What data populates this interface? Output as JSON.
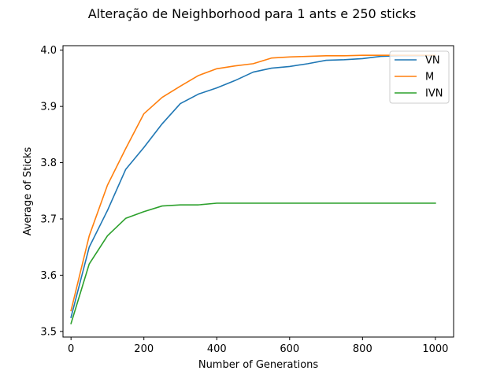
{
  "chart_data": {
    "type": "line",
    "title": "Alteração de Neighborhood para 1 ants e 250 sticks",
    "xlabel": "Number of Generations",
    "ylabel": "Average of Sticks",
    "xlim": [
      -22,
      1050
    ],
    "ylim": [
      3.49,
      4.008
    ],
    "xticks": [
      0,
      200,
      400,
      600,
      800,
      1000
    ],
    "yticks": [
      3.5,
      3.6,
      3.7,
      3.8,
      3.9,
      4.0
    ],
    "xtick_labels": [
      "0",
      "200",
      "400",
      "600",
      "800",
      "1000"
    ],
    "ytick_labels": [
      "3.5",
      "3.6",
      "3.7",
      "3.8",
      "3.9",
      "4.0"
    ],
    "grid": false,
    "legend_position": "top-right",
    "x": [
      0,
      50,
      100,
      150,
      200,
      250,
      300,
      350,
      400,
      450,
      500,
      550,
      600,
      650,
      700,
      750,
      800,
      850,
      900,
      950,
      1000
    ],
    "series": [
      {
        "name": "VN",
        "color": "#1f77b4",
        "values": [
          3.525,
          3.65,
          3.715,
          3.788,
          3.827,
          3.869,
          3.905,
          3.922,
          3.933,
          3.946,
          3.961,
          3.968,
          3.971,
          3.976,
          3.982,
          3.983,
          3.985,
          3.989,
          3.99,
          3.99,
          3.99
        ]
      },
      {
        "name": "M",
        "color": "#ff7f0e",
        "values": [
          3.537,
          3.67,
          3.76,
          3.825,
          3.887,
          3.916,
          3.936,
          3.955,
          3.967,
          3.972,
          3.976,
          3.986,
          3.988,
          3.989,
          3.99,
          3.99,
          3.991,
          3.991,
          3.991,
          3.991,
          3.991
        ]
      },
      {
        "name": "IVN",
        "color": "#2ca02c",
        "values": [
          3.514,
          3.62,
          3.67,
          3.701,
          3.713,
          3.723,
          3.725,
          3.725,
          3.728,
          3.728,
          3.728,
          3.728,
          3.728,
          3.728,
          3.728,
          3.728,
          3.728,
          3.728,
          3.728,
          3.728,
          3.728
        ]
      }
    ]
  }
}
